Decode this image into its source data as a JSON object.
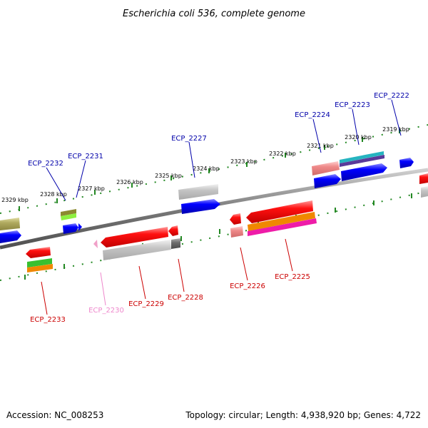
{
  "title": "Escherichia coli 536, complete genome",
  "accession": "Accession: NC_008253",
  "topology": "Topology: circular; Length: 4,938,920 bp; Genes: 4,722",
  "ticks": [
    "2319 kbp",
    "2320 kbp",
    "2321 kbp",
    "2322 kbp",
    "2323 kbp",
    "2324 kbp",
    "2325 kbp",
    "2326 kbp",
    "2327 kbp",
    "2328 kbp",
    "2329 kbp"
  ],
  "genes_upper": [
    "ECP_2222",
    "ECP_2223",
    "ECP_2224",
    "ECP_2227",
    "ECP_2231",
    "ECP_2232"
  ],
  "genes_lower": [
    "ECP_2225",
    "ECP_2226",
    "ECP_2228",
    "ECP_2229",
    "ECP_2230",
    "ECP_2233"
  ],
  "colors": {
    "forward_label": "#0000aa",
    "reverse_label": "#cc0000",
    "pseudo_label": "#ee88cc",
    "tick": "#228822",
    "backbone": "#808080"
  }
}
